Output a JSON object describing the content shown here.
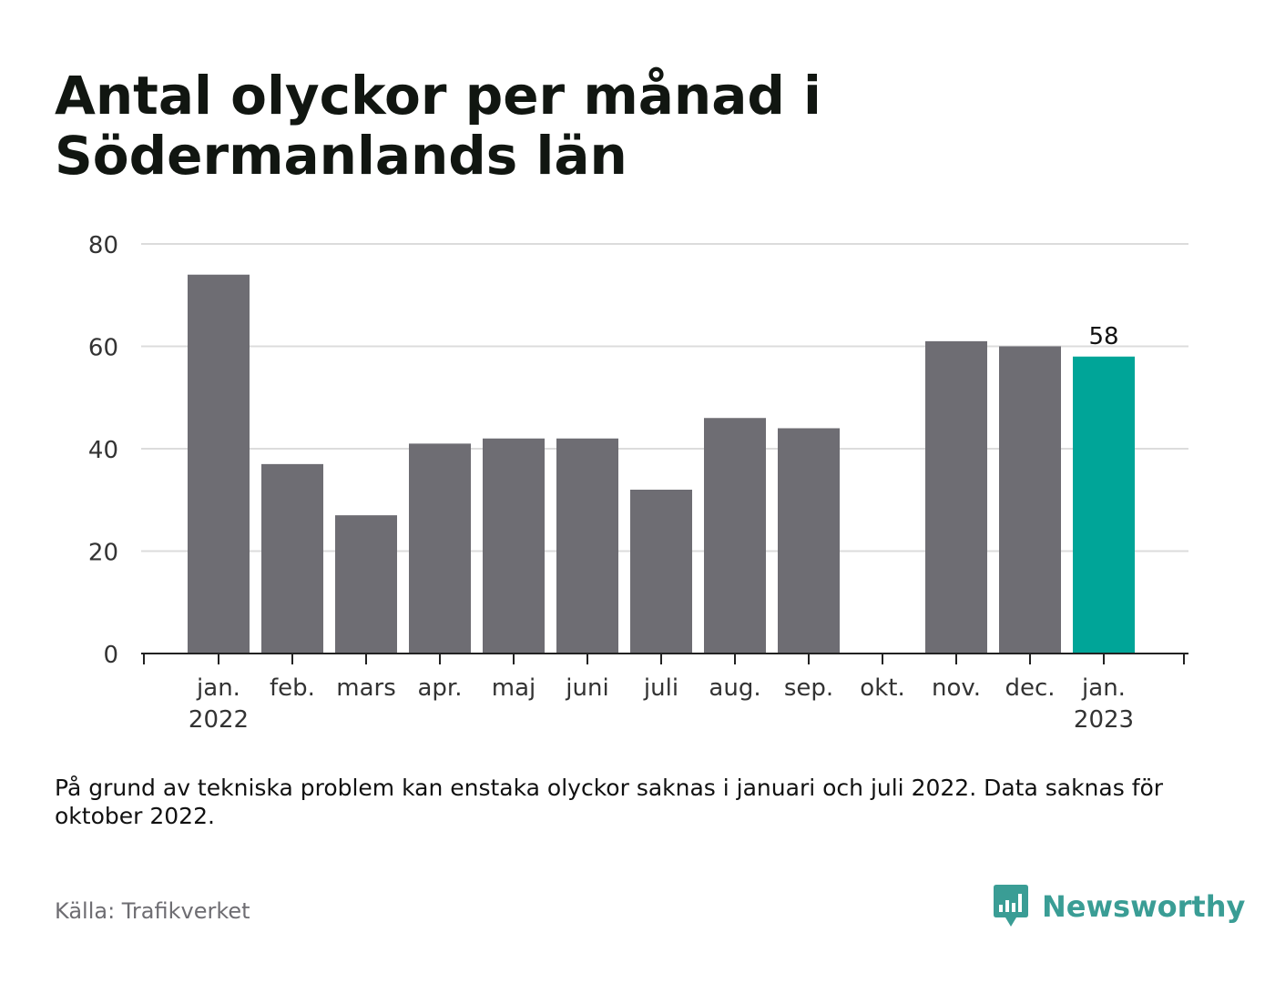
{
  "title": "Antal olyckor per månad i Södermanlands län",
  "note": "På grund av tekniska problem kan enstaka olyckor saknas i januari och juli 2022. Data saknas för oktober 2022.",
  "source": "Källa: Trafikverket",
  "brand": {
    "name": "Newsworthy",
    "icon": "bar-chart-bubble-icon",
    "color": "#3a9d95"
  },
  "colors": {
    "bar": "#6e6d73",
    "highlight": "#00a598",
    "grid": "#dcdcdc",
    "axis": "#222222",
    "tick_text": "#333333"
  },
  "chart_data": {
    "type": "bar",
    "categories": [
      [
        "jan.",
        "2022"
      ],
      [
        "feb."
      ],
      [
        "mars"
      ],
      [
        "apr."
      ],
      [
        "maj"
      ],
      [
        "juni"
      ],
      [
        "juli"
      ],
      [
        "aug."
      ],
      [
        "sep."
      ],
      [
        "okt."
      ],
      [
        "nov."
      ],
      [
        "dec."
      ],
      [
        "jan.",
        "2023"
      ]
    ],
    "values": [
      74,
      37,
      27,
      41,
      42,
      42,
      32,
      46,
      44,
      null,
      61,
      60,
      58
    ],
    "highlight_index": 12,
    "data_labels": [
      {
        "index": 12,
        "text": "58"
      }
    ],
    "yticks": [
      "0",
      "20",
      "40",
      "60",
      "80"
    ],
    "ylim": [
      0,
      80
    ],
    "grid": true,
    "legend": "none",
    "xlabel": "",
    "ylabel": ""
  }
}
